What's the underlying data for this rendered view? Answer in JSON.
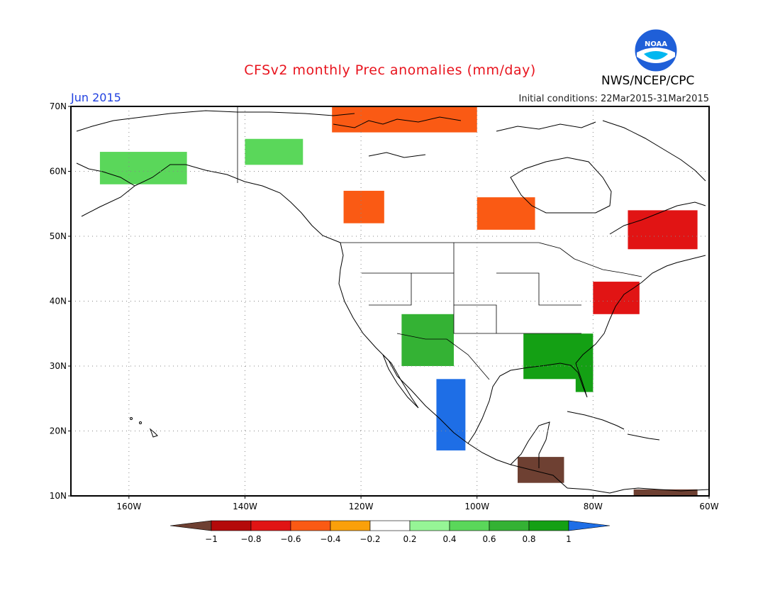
{
  "header": {
    "title": "CFSv2 monthly Prec anomalies (mm/day)",
    "month": "Jun 2015",
    "initial_conditions": "Initial conditions: 22Mar2015-31Mar2015",
    "agency": "NWS/NCEP/CPC",
    "logo_text": "NOAA"
  },
  "map": {
    "lon_range": [
      -170,
      -60
    ],
    "lat_range": [
      10,
      70
    ],
    "lat_ticks": [
      {
        "lat": 70,
        "label": "70N"
      },
      {
        "lat": 60,
        "label": "60N"
      },
      {
        "lat": 50,
        "label": "50N"
      },
      {
        "lat": 40,
        "label": "40N"
      },
      {
        "lat": 30,
        "label": "30N"
      },
      {
        "lat": 20,
        "label": "20N"
      },
      {
        "lat": 10,
        "label": "10N"
      }
    ],
    "lon_ticks": [
      {
        "lon": -160,
        "label": "160W"
      },
      {
        "lon": -140,
        "label": "140W"
      },
      {
        "lon": -120,
        "label": "120W"
      },
      {
        "lon": -100,
        "label": "100W"
      },
      {
        "lon": -80,
        "label": "80W"
      },
      {
        "lon": -60,
        "label": "60W"
      }
    ],
    "grid": "dotted"
  },
  "colorbar": {
    "colors": [
      "#6e4032",
      "#b40a0a",
      "#e11414",
      "#fa5a14",
      "#faa00a",
      "#ffffff",
      "#96f596",
      "#5ad75a",
      "#34b234",
      "#14a014",
      "#1e6ee6"
    ],
    "labels": [
      "−1",
      "−0.8",
      "−0.6",
      "−0.4",
      "−0.2",
      "0.2",
      "0.4",
      "0.6",
      "0.8",
      "1"
    ]
  },
  "anomaly_regions": [
    {
      "name": "southwest-us-mexico-wet",
      "level": 0.6,
      "lon": [
        -113,
        -104
      ],
      "lat": [
        30,
        38
      ]
    },
    {
      "name": "mexico-pacific-coast-very-wet",
      "level": 1,
      "lon": [
        -107,
        -102
      ],
      "lat": [
        17,
        28
      ]
    },
    {
      "name": "southeast-us-wet",
      "level": 0.8,
      "lon": [
        -92,
        -80
      ],
      "lat": [
        28,
        35
      ]
    },
    {
      "name": "florida-wet",
      "level": 0.8,
      "lon": [
        -83,
        -80
      ],
      "lat": [
        26,
        31
      ]
    },
    {
      "name": "mid-atlantic-dry",
      "level": -0.6,
      "lon": [
        -80,
        -72
      ],
      "lat": [
        38,
        43
      ]
    },
    {
      "name": "quebec-dry",
      "level": -0.6,
      "lon": [
        -74,
        -62
      ],
      "lat": [
        48,
        54
      ]
    },
    {
      "name": "hudson-bay-sw-dry",
      "level": -0.4,
      "lon": [
        -100,
        -90
      ],
      "lat": [
        51,
        56
      ]
    },
    {
      "name": "pacific-northwest-dry",
      "level": -0.4,
      "lon": [
        -123,
        -116
      ],
      "lat": [
        52,
        57
      ]
    },
    {
      "name": "alaska-wet",
      "level": 0.4,
      "lon": [
        -165,
        -150
      ],
      "lat": [
        58,
        63
      ]
    },
    {
      "name": "yukon-wet",
      "level": 0.4,
      "lon": [
        -140,
        -130
      ],
      "lat": [
        61,
        65
      ]
    },
    {
      "name": "central-america-very-dry",
      "level": -1,
      "lon": [
        -93,
        -85
      ],
      "lat": [
        12,
        16
      ]
    },
    {
      "name": "venezuela-very-dry",
      "level": -1,
      "lon": [
        -73,
        -62
      ],
      "lat": [
        10,
        11
      ]
    },
    {
      "name": "arctic-islands-dry",
      "level": -0.4,
      "lon": [
        -125,
        -100
      ],
      "lat": [
        66,
        70
      ]
    }
  ]
}
